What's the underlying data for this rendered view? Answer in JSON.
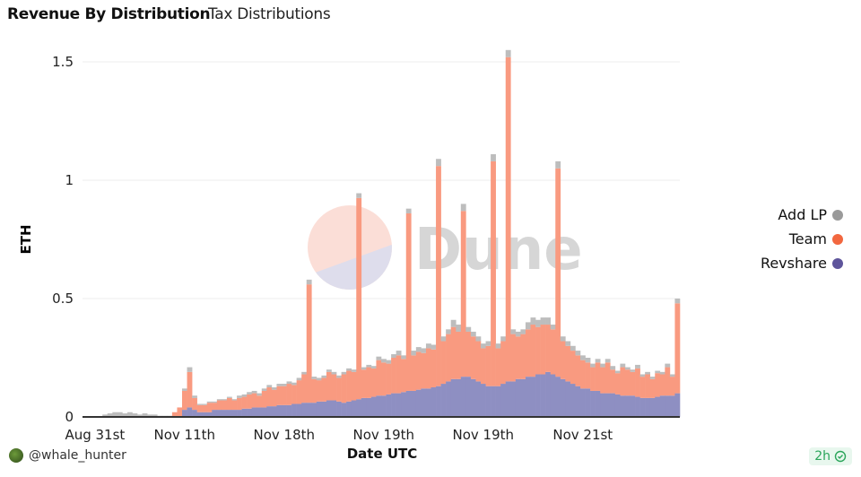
{
  "header": {
    "title": "Revenue By Distribution",
    "subtitle": "Tax Distributions"
  },
  "footer": {
    "author": "@whale_hunter",
    "freshness": "2h"
  },
  "chart_data": {
    "type": "bar",
    "stacked": true,
    "xlabel": "Date UTC",
    "ylabel": "ETH",
    "ylim": [
      0,
      1.5
    ],
    "yticks": [
      0,
      0.5,
      1,
      1.5
    ],
    "ytick_labels": [
      "0",
      "0.5",
      "1",
      "1.5"
    ],
    "xtick_labels": [
      "Aug 31st",
      "Nov 11th",
      "Nov 18th",
      "Nov 19th",
      "Nov 19th",
      "Nov 21st"
    ],
    "xtick_index": [
      2,
      20,
      40,
      60,
      80,
      100
    ],
    "grid": true,
    "legend_position": "right",
    "watermark": "Dune",
    "series": [
      {
        "name": "Revshare",
        "color": "#5e559b",
        "bar_color": "#8e8fc2",
        "values": [
          0,
          0,
          0,
          0,
          0,
          0,
          0,
          0,
          0,
          0,
          0,
          0,
          0,
          0,
          0,
          0,
          0,
          0,
          0,
          0,
          0.03,
          0.04,
          0.03,
          0.02,
          0.02,
          0.02,
          0.03,
          0.03,
          0.03,
          0.03,
          0.03,
          0.03,
          0.035,
          0.035,
          0.04,
          0.04,
          0.04,
          0.045,
          0.045,
          0.05,
          0.05,
          0.05,
          0.055,
          0.055,
          0.06,
          0.06,
          0.06,
          0.065,
          0.065,
          0.07,
          0.07,
          0.065,
          0.06,
          0.065,
          0.07,
          0.075,
          0.08,
          0.08,
          0.085,
          0.09,
          0.09,
          0.095,
          0.1,
          0.1,
          0.105,
          0.11,
          0.11,
          0.115,
          0.12,
          0.12,
          0.125,
          0.13,
          0.14,
          0.15,
          0.16,
          0.16,
          0.17,
          0.17,
          0.16,
          0.15,
          0.14,
          0.13,
          0.13,
          0.13,
          0.14,
          0.15,
          0.15,
          0.16,
          0.16,
          0.17,
          0.17,
          0.18,
          0.18,
          0.19,
          0.18,
          0.17,
          0.16,
          0.15,
          0.14,
          0.13,
          0.12,
          0.12,
          0.11,
          0.11,
          0.1,
          0.1,
          0.1,
          0.095,
          0.09,
          0.09,
          0.09,
          0.085,
          0.08,
          0.08,
          0.08,
          0.085,
          0.09,
          0.09,
          0.09,
          0.1
        ]
      },
      {
        "name": "Team",
        "color": "#f2673f",
        "bar_color": "#f99a80",
        "values": [
          0,
          0,
          0,
          0,
          0,
          0,
          0,
          0,
          0,
          0,
          0,
          0,
          0,
          0,
          0,
          0,
          0,
          0,
          0.02,
          0.04,
          0.08,
          0.15,
          0.05,
          0.03,
          0.03,
          0.04,
          0.03,
          0.04,
          0.04,
          0.05,
          0.04,
          0.05,
          0.05,
          0.06,
          0.06,
          0.05,
          0.07,
          0.08,
          0.07,
          0.08,
          0.08,
          0.09,
          0.08,
          0.1,
          0.12,
          0.5,
          0.1,
          0.09,
          0.1,
          0.12,
          0.11,
          0.1,
          0.12,
          0.13,
          0.12,
          0.85,
          0.12,
          0.13,
          0.12,
          0.15,
          0.14,
          0.13,
          0.15,
          0.16,
          0.14,
          0.75,
          0.15,
          0.16,
          0.15,
          0.17,
          0.16,
          0.93,
          0.18,
          0.2,
          0.22,
          0.2,
          0.7,
          0.19,
          0.18,
          0.17,
          0.15,
          0.17,
          0.95,
          0.16,
          0.18,
          1.37,
          0.2,
          0.18,
          0.19,
          0.2,
          0.22,
          0.2,
          0.21,
          0.2,
          0.19,
          0.88,
          0.16,
          0.15,
          0.14,
          0.13,
          0.12,
          0.11,
          0.1,
          0.12,
          0.11,
          0.13,
          0.1,
          0.09,
          0.12,
          0.11,
          0.1,
          0.12,
          0.09,
          0.1,
          0.08,
          0.1,
          0.09,
          0.12,
          0.08,
          0.38
        ]
      },
      {
        "name": "Add LP",
        "color": "#9a9a9a",
        "bar_color": "#bdbdbd",
        "values": [
          0,
          0,
          0,
          0,
          0.01,
          0.015,
          0.02,
          0.02,
          0.015,
          0.02,
          0.015,
          0.01,
          0.015,
          0.01,
          0.01,
          0.005,
          0.005,
          0.005,
          0,
          0,
          0.01,
          0.02,
          0.01,
          0.005,
          0.005,
          0.005,
          0.005,
          0.005,
          0.005,
          0.005,
          0.005,
          0.01,
          0.01,
          0.01,
          0.01,
          0.01,
          0.01,
          0.01,
          0.01,
          0.01,
          0.01,
          0.01,
          0.01,
          0.01,
          0.01,
          0.02,
          0.01,
          0.01,
          0.01,
          0.01,
          0.01,
          0.01,
          0.01,
          0.01,
          0.01,
          0.02,
          0.01,
          0.01,
          0.01,
          0.015,
          0.015,
          0.015,
          0.015,
          0.02,
          0.015,
          0.02,
          0.02,
          0.02,
          0.02,
          0.02,
          0.02,
          0.03,
          0.02,
          0.02,
          0.03,
          0.03,
          0.03,
          0.02,
          0.02,
          0.02,
          0.02,
          0.02,
          0.03,
          0.02,
          0.02,
          0.03,
          0.02,
          0.02,
          0.02,
          0.03,
          0.03,
          0.03,
          0.03,
          0.03,
          0.02,
          0.03,
          0.02,
          0.02,
          0.02,
          0.02,
          0.02,
          0.02,
          0.015,
          0.015,
          0.015,
          0.015,
          0.015,
          0.01,
          0.015,
          0.01,
          0.01,
          0.015,
          0.01,
          0.01,
          0.01,
          0.01,
          0.01,
          0.015,
          0.01,
          0.02
        ]
      }
    ]
  }
}
